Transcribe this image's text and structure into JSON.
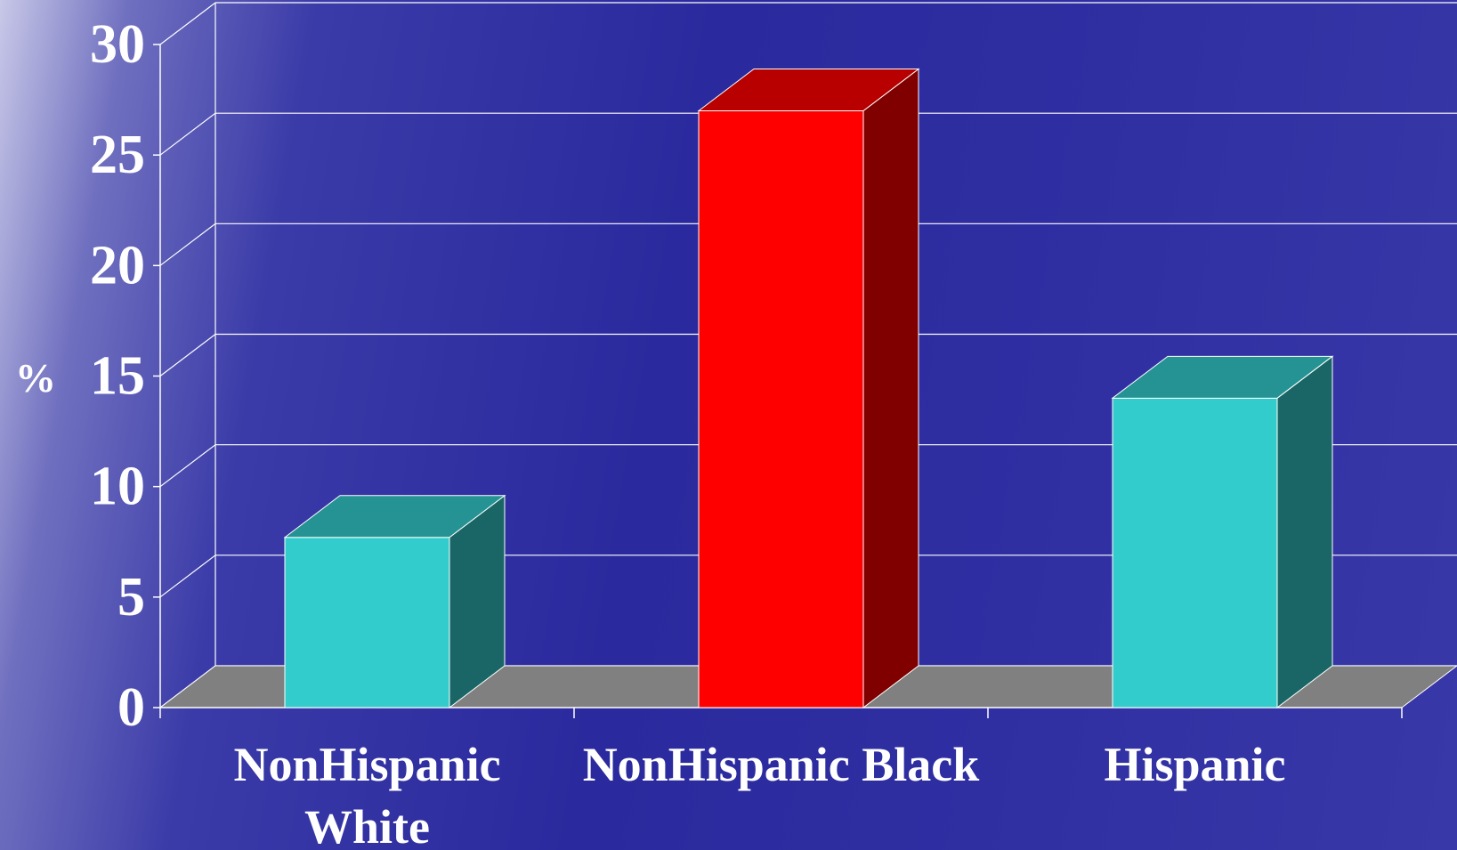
{
  "chart_data": {
    "type": "bar",
    "style": "3d",
    "categories": [
      "NonHispanic White",
      "NonHispanic Black",
      "Hispanic"
    ],
    "category_lines": [
      [
        "NonHispanic",
        "White"
      ],
      [
        "NonHispanic Black"
      ],
      [
        "Hispanic"
      ]
    ],
    "values": [
      7.7,
      27.0,
      14.0
    ],
    "bar_colors": [
      "#33cccc",
      "#ff0000",
      "#33cccc"
    ],
    "ylabel": "%",
    "ylim": [
      0,
      30
    ],
    "yticks": [
      0,
      5,
      10,
      15,
      20,
      25,
      30
    ],
    "grid": true
  },
  "colors": {
    "floor": "#808080",
    "gridline": "#ffffff",
    "text": "#ffffff"
  }
}
